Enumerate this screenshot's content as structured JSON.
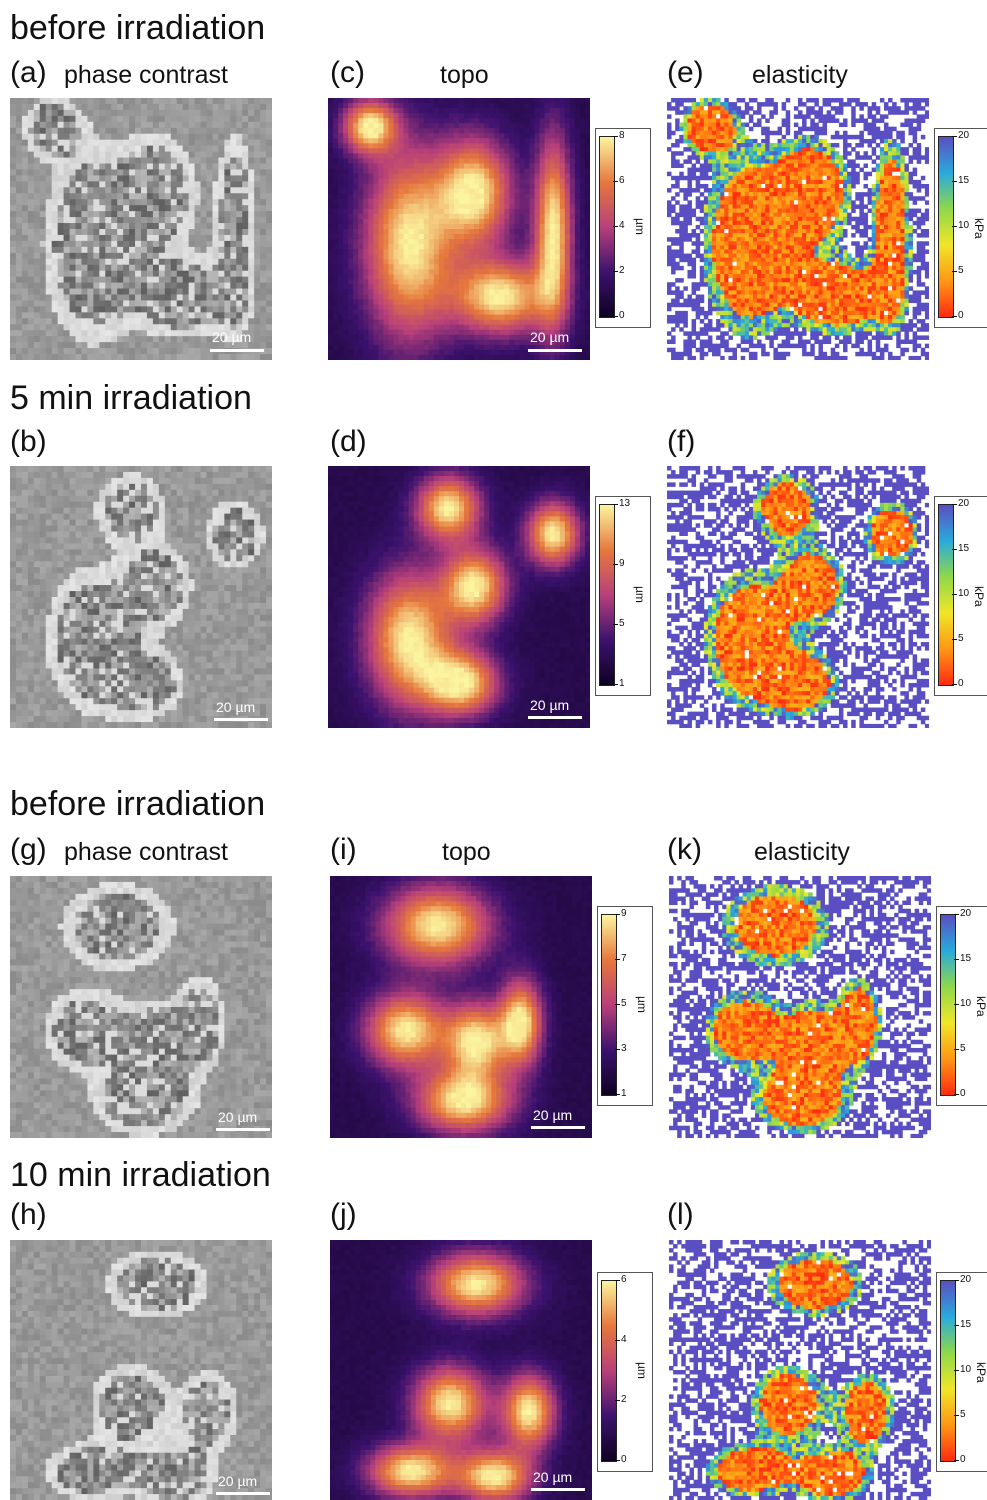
{
  "sections": [
    {
      "title": "before irradiation"
    },
    {
      "title": "5 min irradiation"
    },
    {
      "title": "before irradiation"
    },
    {
      "title": "10 min irradiation"
    }
  ],
  "column_titles": {
    "phase": "phase contrast",
    "topo": "topo",
    "elasticity": "elasticity"
  },
  "scale_bar": "20 µm",
  "panels": [
    {
      "id": "a",
      "label": "(a)",
      "kind": "phase"
    },
    {
      "id": "c",
      "label": "(c)",
      "kind": "topo",
      "unit": "µm",
      "ticks": [
        "8",
        "6",
        "4",
        "2",
        "0"
      ],
      "max": 8
    },
    {
      "id": "e",
      "label": "(e)",
      "kind": "elasticity",
      "unit": "kPa",
      "ticks": [
        "20",
        "15",
        "10",
        "5",
        "0"
      ]
    },
    {
      "id": "b",
      "label": "(b)",
      "kind": "phase"
    },
    {
      "id": "d",
      "label": "(d)",
      "kind": "topo",
      "unit": "µm",
      "ticks": [
        "13",
        "9",
        "5",
        "1"
      ],
      "max": 14
    },
    {
      "id": "f",
      "label": "(f)",
      "kind": "elasticity",
      "unit": "kPa",
      "ticks": [
        "20",
        "15",
        "10",
        "5",
        "0"
      ]
    },
    {
      "id": "g",
      "label": "(g)",
      "kind": "phase"
    },
    {
      "id": "i",
      "label": "(i)",
      "kind": "topo",
      "unit": "µm",
      "ticks": [
        "9",
        "7",
        "5",
        "3",
        "1"
      ],
      "max": 9
    },
    {
      "id": "k",
      "label": "(k)",
      "kind": "elasticity",
      "unit": "kPa",
      "ticks": [
        "20",
        "15",
        "10",
        "5",
        "0"
      ]
    },
    {
      "id": "h",
      "label": "(h)",
      "kind": "phase"
    },
    {
      "id": "j",
      "label": "(j)",
      "kind": "topo",
      "unit": "µm",
      "ticks": [
        "6",
        "4",
        "2",
        "0"
      ],
      "max": 7
    },
    {
      "id": "l",
      "label": "(l)",
      "kind": "elasticity",
      "unit": "kPa",
      "ticks": [
        "20",
        "15",
        "10",
        "5",
        "0"
      ]
    }
  ],
  "colors": {
    "topo_low": "#0d0222",
    "topo_mid": "#b8407a",
    "topo_high": "#fbf5a0",
    "elast_soft": "#ff2a10",
    "elast_mid": "#8fd84a",
    "elast_stiff": "#5a4fc2"
  }
}
